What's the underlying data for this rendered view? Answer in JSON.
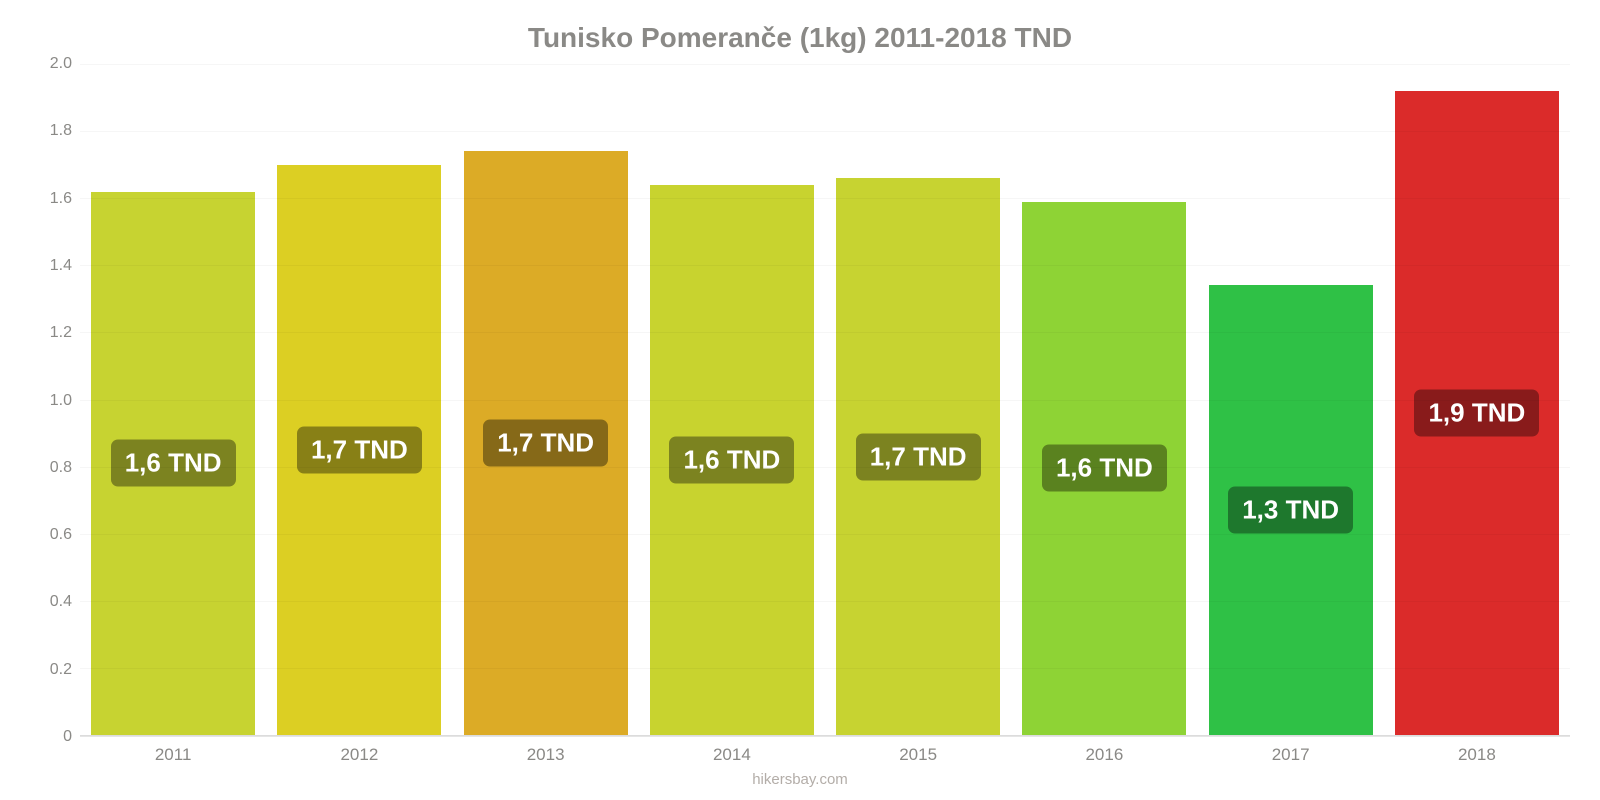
{
  "chart": {
    "type": "bar",
    "title": "Tunisko Pomeranče (1kg) 2011-2018 TND",
    "title_color": "#8a8986",
    "title_fontsize": 28,
    "background_color": "#ffffff",
    "grid_color": "rgba(0,0,0,0.035)",
    "axis_text_color": "#8a8986",
    "ylim": [
      0,
      2.0
    ],
    "yticks": [
      0,
      0.2,
      0.4,
      0.6,
      0.8,
      1.0,
      1.2,
      1.4,
      1.6,
      1.8,
      2.0
    ],
    "ytick_labels": [
      "0",
      "0.2",
      "0.4",
      "0.6",
      "0.8",
      "1.0",
      "1.2",
      "1.4",
      "1.6",
      "1.8",
      "2.0"
    ],
    "categories": [
      "2011",
      "2012",
      "2013",
      "2014",
      "2015",
      "2016",
      "2017",
      "2018"
    ],
    "values": [
      1.62,
      1.7,
      1.74,
      1.64,
      1.66,
      1.59,
      1.34,
      1.92
    ],
    "value_labels": [
      "1,6 TND",
      "1,7 TND",
      "1,7 TND",
      "1,6 TND",
      "1,7 TND",
      "1,6 TND",
      "1,3 TND",
      "1,9 TND"
    ],
    "bar_colors": [
      "#c7d331",
      "#dccf23",
      "#dcab26",
      "#c8d32f",
      "#c7d331",
      "#8ed335",
      "#2fc146",
      "#db2b2a"
    ],
    "label_pill_colors": [
      "#7c8320",
      "#888016",
      "#866918",
      "#7c8320",
      "#7c8320",
      "#5a821f",
      "#1e782d",
      "#891b1b"
    ],
    "label_text_color": "#ffffff",
    "bar_width_ratio": 0.88,
    "attribution": "hikersbay.com",
    "attribution_color": "#b3ada8"
  }
}
